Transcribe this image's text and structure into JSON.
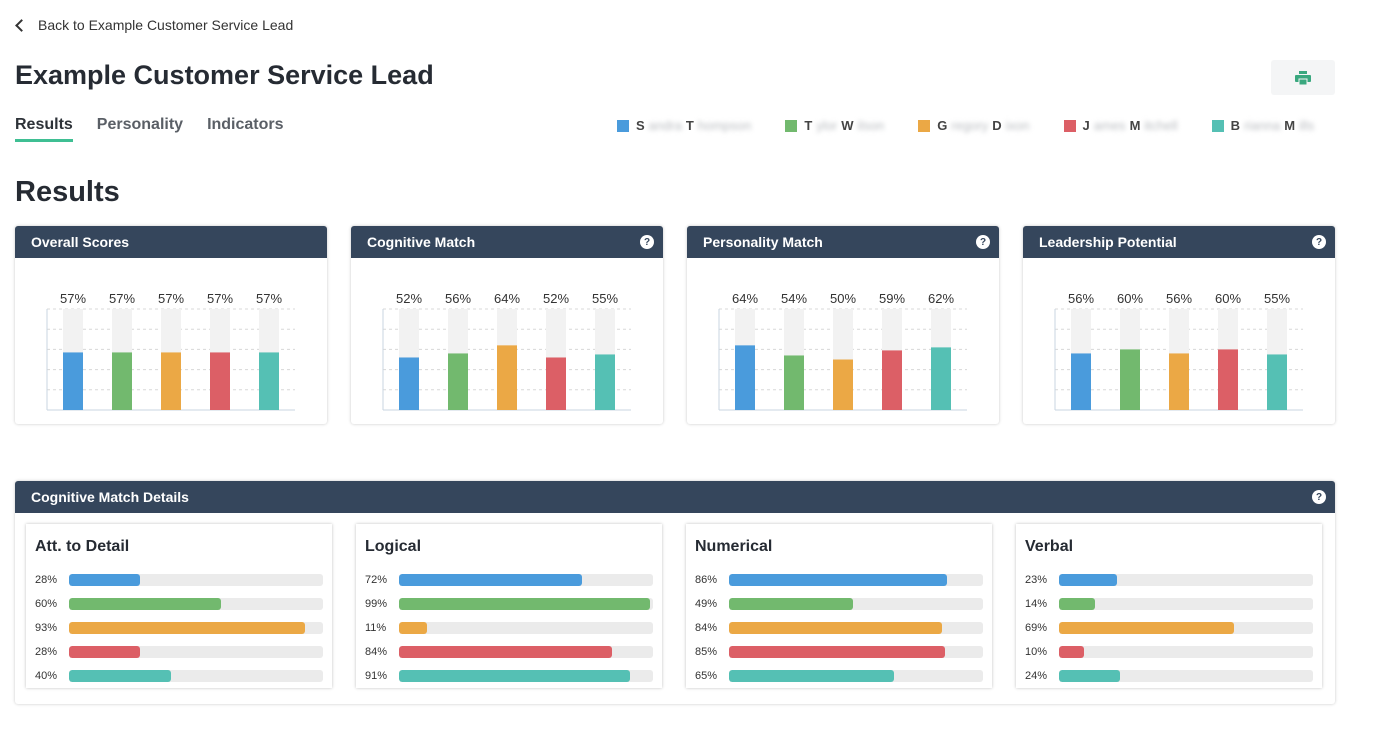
{
  "nav": {
    "back_label": "Back to Example Customer Service Lead"
  },
  "page": {
    "title": "Example Customer Service Lead",
    "section_title": "Results"
  },
  "tabs": [
    {
      "label": "Results",
      "active": true
    },
    {
      "label": "Personality",
      "active": false
    },
    {
      "label": "Indicators",
      "active": false
    }
  ],
  "candidates": [
    {
      "first_initial": "S",
      "first_rest": "andra",
      "last_initial": "T",
      "last_rest": "hompson",
      "color": "#4a9bdc"
    },
    {
      "first_initial": "T",
      "first_rest": "ylor",
      "last_initial": "W",
      "last_rest": "ilson",
      "color": "#72b96e"
    },
    {
      "first_initial": "G",
      "first_rest": "regory",
      "last_initial": "D",
      "last_rest": "ixon",
      "color": "#eba845"
    },
    {
      "first_initial": "J",
      "first_rest": "ames",
      "last_initial": "M",
      "last_rest": "itchell",
      "color": "#dc5f66"
    },
    {
      "first_initial": "B",
      "first_rest": "rianna",
      "last_initial": "M",
      "last_rest": "ills",
      "color": "#55c0b4"
    }
  ],
  "summary_cards": [
    {
      "title": "Overall Scores",
      "has_help": false,
      "values": [
        57,
        57,
        57,
        57,
        57
      ]
    },
    {
      "title": "Cognitive Match",
      "has_help": true,
      "values": [
        52,
        56,
        64,
        52,
        55
      ]
    },
    {
      "title": "Personality Match",
      "has_help": true,
      "values": [
        64,
        54,
        50,
        59,
        62
      ]
    },
    {
      "title": "Leadership Potential",
      "has_help": true,
      "values": [
        56,
        60,
        56,
        60,
        55
      ]
    }
  ],
  "details": {
    "title": "Cognitive Match Details",
    "groups": [
      {
        "title": "Att. to Detail",
        "values": [
          28,
          60,
          93,
          28,
          40
        ]
      },
      {
        "title": "Logical",
        "values": [
          72,
          99,
          11,
          84,
          91
        ]
      },
      {
        "title": "Numerical",
        "values": [
          86,
          49,
          84,
          85,
          65
        ]
      },
      {
        "title": "Verbal",
        "values": [
          23,
          14,
          69,
          10,
          24
        ]
      }
    ]
  },
  "icons": {
    "back": "chevron-left-icon",
    "print": "printer-icon",
    "help": "question-circle-icon"
  },
  "help_glyph": "?",
  "percent_suffix": "%"
}
